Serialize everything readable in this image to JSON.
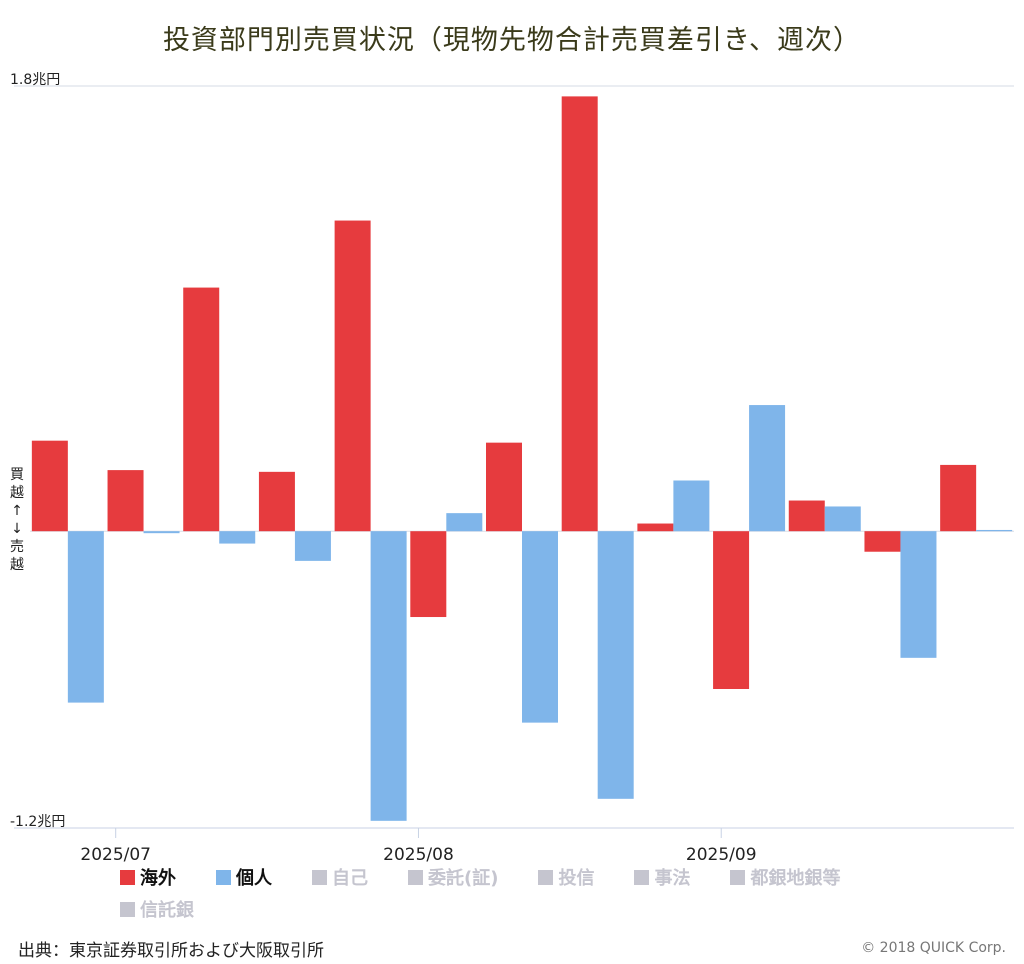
{
  "title": "投資部門別売買状況（現物先物合計売買差引き、週次）",
  "y_axis_label_chars": [
    "買",
    "越",
    "↑",
    "↓",
    "売",
    "越"
  ],
  "source": "出典：東京証券取引所および大阪取引所",
  "copyright": "© 2018 QUICK Corp.",
  "legend": [
    {
      "label": "海外",
      "color": "#e63b3e",
      "active": true
    },
    {
      "label": "個人",
      "color": "#7fb5ea",
      "active": true
    },
    {
      "label": "自己",
      "color": "#c5c5cf",
      "active": false
    },
    {
      "label": "委託(証)",
      "color": "#c5c5cf",
      "active": false
    },
    {
      "label": "投信",
      "color": "#c5c5cf",
      "active": false
    },
    {
      "label": "事法",
      "color": "#c5c5cf",
      "active": false
    },
    {
      "label": "都銀地銀等",
      "color": "#c5c5cf",
      "active": false
    },
    {
      "label": "信託銀",
      "color": "#c5c5cf",
      "active": false
    }
  ],
  "chart_data": {
    "type": "bar",
    "title": "投資部門別売買状況（現物先物合計売買差引き、週次）",
    "ylim": [
      -1.2,
      1.8
    ],
    "y_ticks": [
      {
        "value": 1.8,
        "label": "1.8兆円"
      },
      {
        "value": -1.2,
        "label": "-1.2兆円"
      }
    ],
    "x_ticks": [
      {
        "index": 1,
        "label": "2025/07"
      },
      {
        "index": 5,
        "label": "2025/08"
      },
      {
        "index": 9,
        "label": "2025/09"
      }
    ],
    "grid": false,
    "legend_position": "bottom",
    "n_weeks": 13,
    "series": [
      {
        "name": "海外",
        "color": "#e63b3e",
        "values": [
          0.366,
          0.247,
          0.985,
          0.24,
          1.256,
          -0.347,
          0.358,
          1.758,
          0.031,
          -0.638,
          0.124,
          -0.083,
          0.268
        ]
      },
      {
        "name": "個人",
        "color": "#7fb5ea",
        "values": [
          -0.693,
          -0.008,
          -0.05,
          -0.12,
          -1.171,
          0.073,
          -0.774,
          -1.082,
          0.205,
          0.51,
          0.1,
          -0.512,
          0.005
        ]
      }
    ]
  }
}
